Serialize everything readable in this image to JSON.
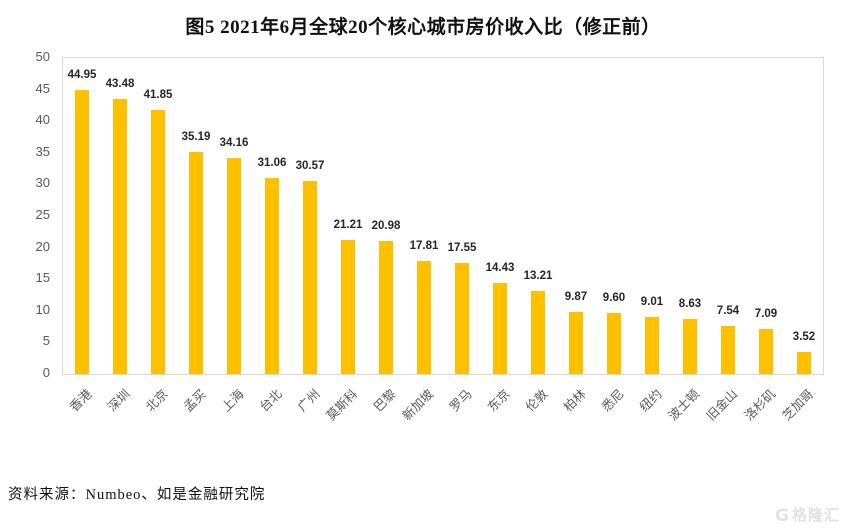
{
  "title": "图5 2021年6月全球20个核心城市房价收入比（修正前）",
  "source": "资料来源：Numbeo、如是金融研究院",
  "watermark": {
    "logo_letter": "G",
    "text": "格隆汇"
  },
  "colors": {
    "bar": "#FFC000",
    "title_text": "#111111",
    "value_label": "#262626",
    "axis_label": "#595959",
    "plot_border": "#d9d9d9",
    "watermark": "#e2e2e2"
  },
  "chart_data": {
    "type": "bar",
    "title": "图5 2021年6月全球20个核心城市房价收入比（修正前）",
    "categories": [
      "香港",
      "深圳",
      "北京",
      "孟买",
      "上海",
      "台北",
      "广州",
      "莫斯科",
      "巴黎",
      "新加坡",
      "罗马",
      "东京",
      "伦敦",
      "柏林",
      "悉尼",
      "纽约",
      "波士顿",
      "旧金山",
      "洛杉矶",
      "芝加哥"
    ],
    "values": [
      44.95,
      43.48,
      41.85,
      35.19,
      34.16,
      31.06,
      30.57,
      21.21,
      20.98,
      17.81,
      17.55,
      14.43,
      13.21,
      9.87,
      9.6,
      9.01,
      8.63,
      7.54,
      7.09,
      3.52
    ],
    "xlabel": "",
    "ylabel": "",
    "ylim": [
      0,
      50
    ],
    "yticks": [
      0,
      5,
      10,
      15,
      20,
      25,
      30,
      35,
      40,
      45,
      50
    ],
    "grid": false,
    "legend_position": "none",
    "bar_color": "#FFC000",
    "value_label_decimals": 2,
    "category_label_rotation_deg": 45
  }
}
